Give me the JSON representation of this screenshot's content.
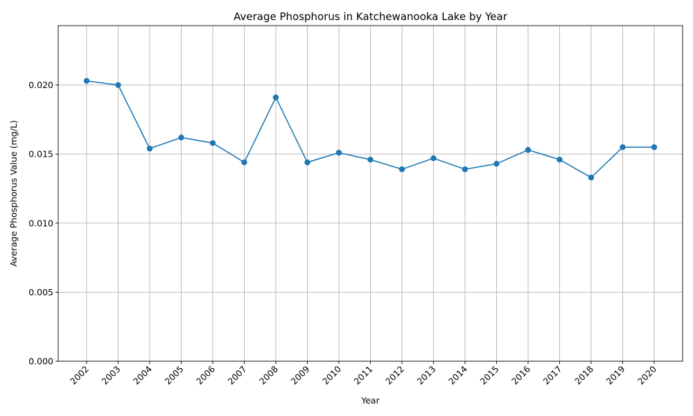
{
  "chart_data": {
    "type": "line",
    "title": "Average Phosphorus in Katchewanooka Lake by Year",
    "xlabel": "Year",
    "ylabel": "Average Phosphorus Value (mg/L)",
    "categories": [
      "2002",
      "2003",
      "2004",
      "2005",
      "2006",
      "2007",
      "2008",
      "2009",
      "2010",
      "2011",
      "2012",
      "2013",
      "2014",
      "2015",
      "2016",
      "2017",
      "2018",
      "2019",
      "2020"
    ],
    "series": [
      {
        "values": [
          0.0203,
          0.02,
          0.0154,
          0.0162,
          0.0158,
          0.0144,
          0.0191,
          0.0144,
          0.0151,
          0.0146,
          0.0139,
          0.0147,
          0.0139,
          0.0143,
          0.0153,
          0.0146,
          0.0133,
          0.0155,
          0.0155
        ],
        "color": "#1f77b4",
        "marker": "circle"
      }
    ],
    "ylim": [
      0,
      0.0243
    ],
    "yticks": [
      0.0,
      0.005,
      0.01,
      0.015,
      0.02
    ],
    "ytick_labels": [
      "0.000",
      "0.005",
      "0.010",
      "0.015",
      "0.020"
    ],
    "grid": true,
    "xtick_rotation": "45-degree"
  }
}
